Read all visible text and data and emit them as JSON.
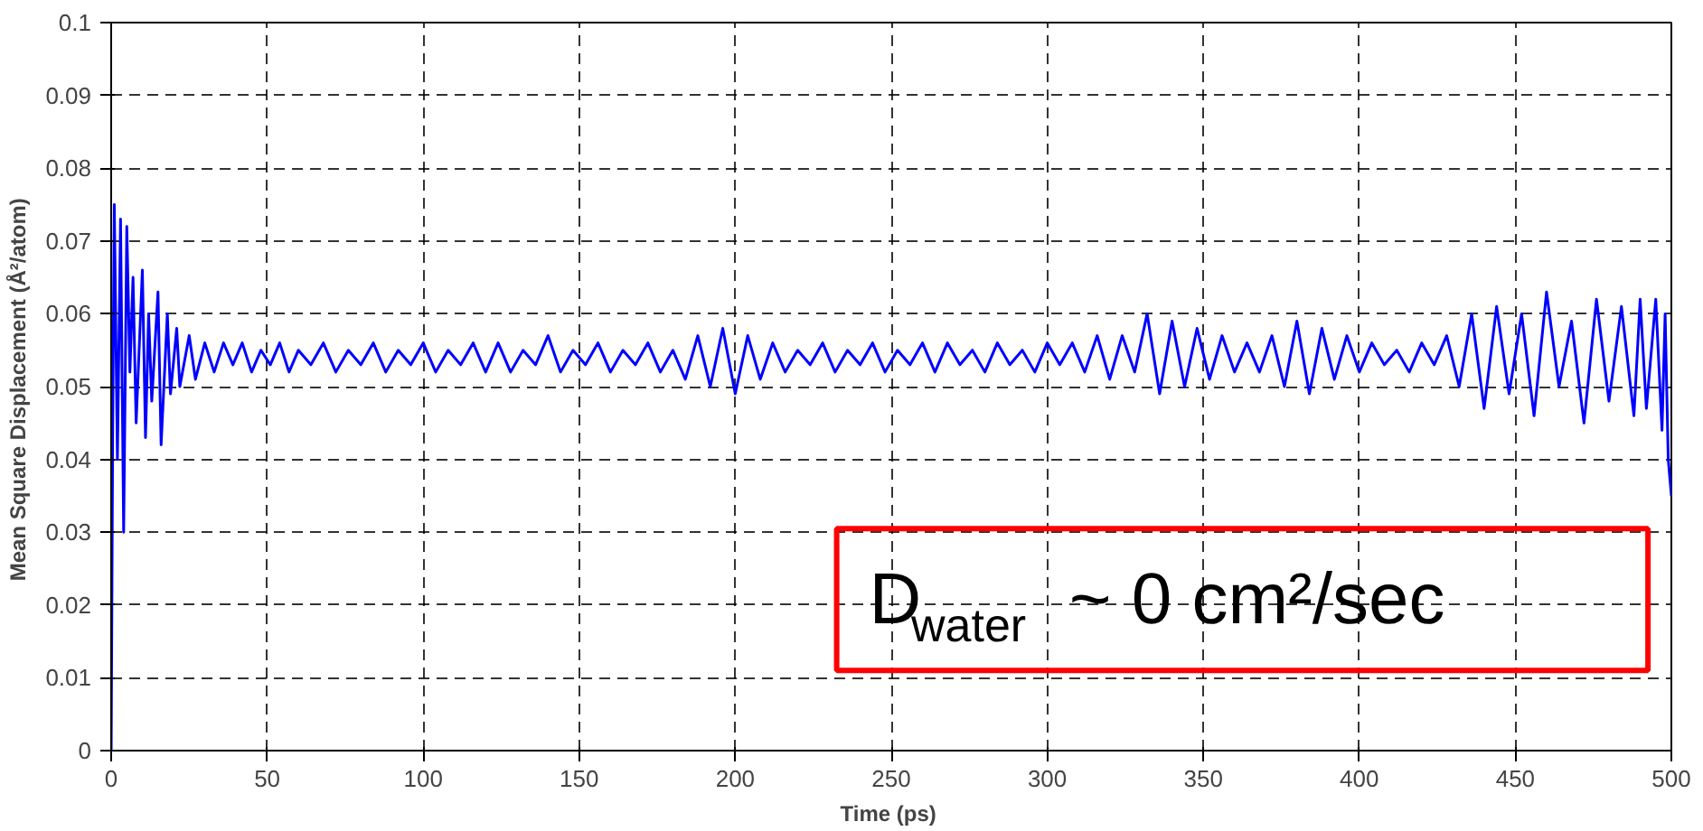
{
  "chart_data": {
    "type": "line",
    "xlabel": "Time  (ps)",
    "ylabel": "Mean Square Displacement  (Å²/atom)",
    "annotations": [
      "D$_{water}$ ~ 0 cm²/sec"
    ],
    "xlim": [
      0,
      500
    ],
    "xticks": [
      0,
      50,
      100,
      150,
      200,
      250,
      300,
      350,
      400,
      450,
      500
    ],
    "ylim": [
      0,
      0.1
    ],
    "yticks": [
      0,
      0.01,
      0.02,
      0.03,
      0.04,
      0.05,
      0.06,
      0.07,
      0.08,
      0.09,
      0.1
    ],
    "grid": true,
    "marker": "none",
    "line_style": "solid",
    "series": [
      {
        "color": "#0000ff",
        "x": [
          0,
          0.5,
          1,
          2,
          3,
          4,
          5,
          6,
          7,
          8,
          10,
          11,
          12,
          13,
          15,
          16,
          18,
          19,
          21,
          22,
          25,
          27,
          30,
          33,
          36,
          39,
          42,
          45,
          48,
          51,
          54,
          57,
          60,
          64,
          68,
          72,
          76,
          80,
          84,
          88,
          92,
          96,
          100,
          104,
          108,
          112,
          116,
          120,
          124,
          128,
          132,
          136,
          140,
          144,
          148,
          152,
          156,
          160,
          164,
          168,
          172,
          176,
          180,
          184,
          188,
          192,
          196,
          200,
          204,
          208,
          212,
          216,
          220,
          224,
          228,
          232,
          236,
          240,
          244,
          248,
          252,
          256,
          260,
          264,
          268,
          272,
          276,
          280,
          284,
          288,
          292,
          296,
          300,
          304,
          308,
          312,
          316,
          320,
          324,
          328,
          332,
          336,
          340,
          344,
          348,
          352,
          356,
          360,
          364,
          368,
          372,
          376,
          380,
          384,
          388,
          392,
          396,
          400,
          404,
          408,
          412,
          416,
          420,
          424,
          428,
          432,
          436,
          440,
          444,
          448,
          452,
          456,
          460,
          464,
          468,
          472,
          476,
          480,
          484,
          488,
          490,
          492,
          495,
          497,
          498,
          499,
          500
        ],
        "values": [
          0,
          0.045,
          0.075,
          0.04,
          0.073,
          0.03,
          0.072,
          0.052,
          0.065,
          0.045,
          0.066,
          0.043,
          0.06,
          0.048,
          0.063,
          0.042,
          0.06,
          0.049,
          0.058,
          0.05,
          0.057,
          0.051,
          0.056,
          0.052,
          0.056,
          0.053,
          0.056,
          0.052,
          0.055,
          0.053,
          0.056,
          0.052,
          0.055,
          0.053,
          0.056,
          0.052,
          0.055,
          0.053,
          0.056,
          0.052,
          0.055,
          0.053,
          0.056,
          0.052,
          0.055,
          0.053,
          0.056,
          0.052,
          0.056,
          0.052,
          0.055,
          0.053,
          0.057,
          0.052,
          0.055,
          0.053,
          0.056,
          0.052,
          0.055,
          0.053,
          0.056,
          0.052,
          0.055,
          0.051,
          0.057,
          0.05,
          0.058,
          0.049,
          0.057,
          0.051,
          0.056,
          0.052,
          0.055,
          0.053,
          0.056,
          0.052,
          0.055,
          0.053,
          0.056,
          0.052,
          0.055,
          0.053,
          0.056,
          0.052,
          0.056,
          0.053,
          0.055,
          0.052,
          0.056,
          0.053,
          0.055,
          0.052,
          0.056,
          0.053,
          0.056,
          0.052,
          0.057,
          0.051,
          0.057,
          0.052,
          0.06,
          0.049,
          0.059,
          0.05,
          0.058,
          0.051,
          0.057,
          0.052,
          0.056,
          0.052,
          0.057,
          0.05,
          0.059,
          0.049,
          0.058,
          0.051,
          0.057,
          0.052,
          0.056,
          0.053,
          0.055,
          0.052,
          0.056,
          0.053,
          0.057,
          0.05,
          0.06,
          0.047,
          0.061,
          0.049,
          0.06,
          0.046,
          0.063,
          0.05,
          0.059,
          0.045,
          0.062,
          0.048,
          0.061,
          0.046,
          0.062,
          0.047,
          0.062,
          0.044,
          0.06,
          0.04,
          0.035
        ]
      }
    ]
  }
}
